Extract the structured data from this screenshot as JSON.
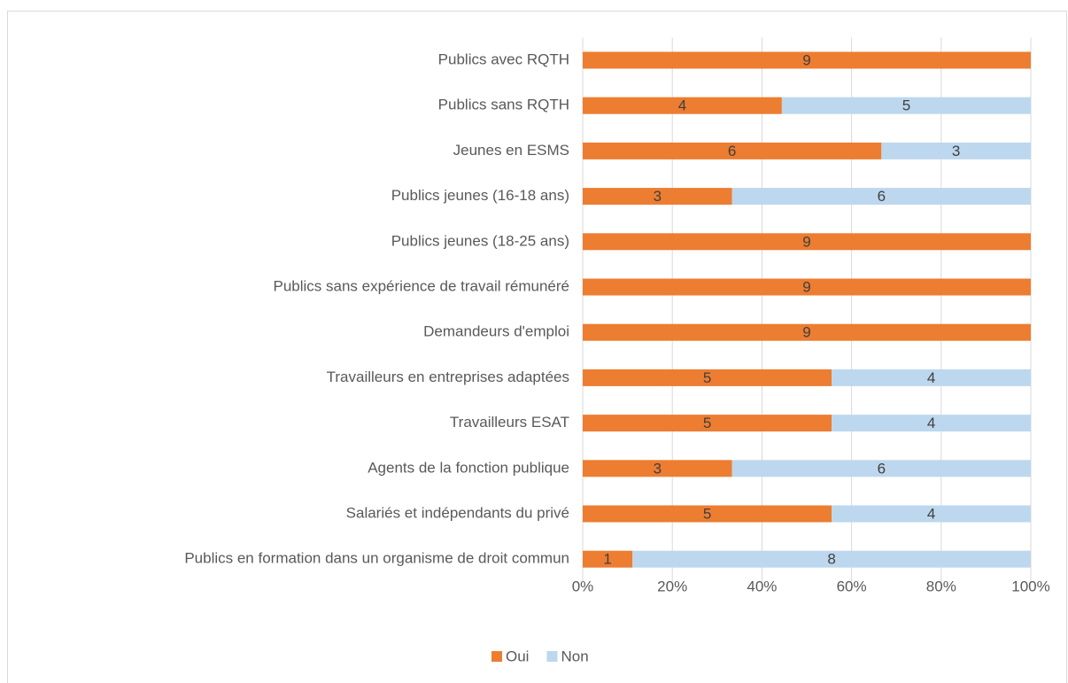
{
  "chart_data": {
    "type": "bar",
    "orientation": "horizontal",
    "stacking": "percent",
    "categories": [
      "Publics avec RQTH",
      "Publics sans RQTH",
      "Jeunes en ESMS",
      "Publics jeunes (16-18 ans)",
      "Publics jeunes (18-25 ans)",
      "Publics sans expérience de travail rémunéré",
      "Demandeurs d'emploi",
      "Travailleurs en entreprises adaptées",
      "Travailleurs ESAT",
      "Agents de la fonction publique",
      "Salariés et indépendants du privé",
      "Publics en formation dans un organisme de droit commun"
    ],
    "series": [
      {
        "name": "Oui",
        "color": "#ed7d31",
        "values": [
          9,
          4,
          6,
          3,
          9,
          9,
          9,
          5,
          5,
          3,
          5,
          1
        ]
      },
      {
        "name": "Non",
        "color": "#bdd7ee",
        "values": [
          0,
          5,
          3,
          6,
          0,
          0,
          0,
          4,
          4,
          6,
          4,
          8
        ]
      }
    ],
    "xlim": [
      0,
      100
    ],
    "xticks": [
      {
        "value": 0,
        "label": "0%"
      },
      {
        "value": 20,
        "label": "20%"
      },
      {
        "value": 40,
        "label": "40%"
      },
      {
        "value": 60,
        "label": "60%"
      },
      {
        "value": 80,
        "label": "80%"
      },
      {
        "value": 100,
        "label": "100%"
      }
    ],
    "grid": true,
    "legend": "bottom"
  }
}
